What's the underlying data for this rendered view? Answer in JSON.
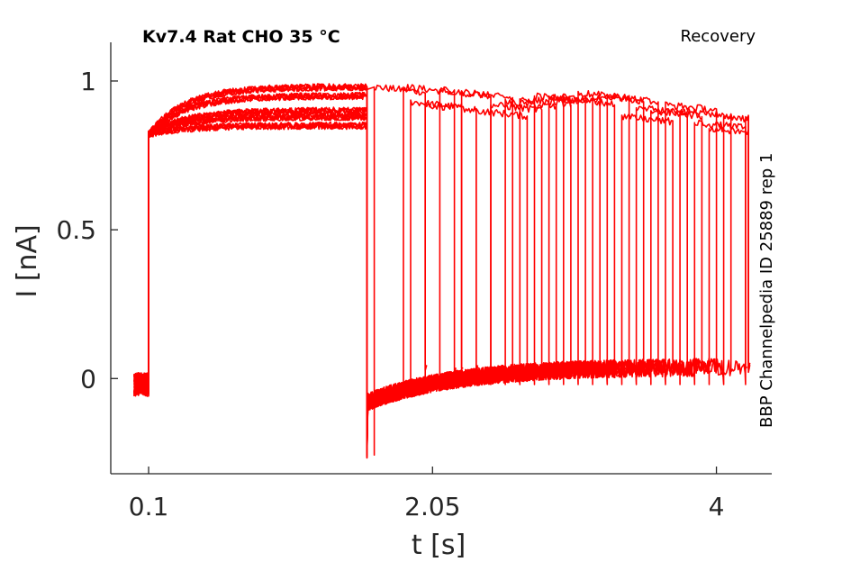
{
  "chart_data": {
    "type": "line",
    "title": "Kv7.4  Rat  CHO  35 °C",
    "protocol_label": "Recovery",
    "side_label": "BBP Channelpedia ID 25889 rep 1",
    "xlabel": "t [s]",
    "ylabel": "I [nA]",
    "xticks": [
      0.1,
      2.05,
      4
    ],
    "xtick_labels": [
      "0.1",
      "2.05",
      "4"
    ],
    "yticks": [
      0,
      0.5,
      1
    ],
    "ytick_labels": [
      "0",
      "0.5",
      "1"
    ],
    "xlim": [
      -0.16,
      4.38
    ],
    "ylim": [
      -0.32,
      1.13
    ],
    "grid": false,
    "legend": "none",
    "color": "#ff0000",
    "baseline": -0.02,
    "prepulse_window": [
      0.1,
      1.6
    ],
    "prepulse_levels": [
      0.98,
      0.9,
      0.95,
      0.88,
      0.85
    ],
    "series": [
      {
        "recovery_step_start": 1.65,
        "test_pulse_end": 1.65,
        "test_level": 0.98
      },
      {
        "recovery_step_start": 1.6,
        "test_pulse_end": 1.85,
        "test_level": 0.98
      },
      {
        "recovery_step_start": 1.6,
        "test_pulse_end": 1.9,
        "test_level": 0.93
      },
      {
        "recovery_step_start": 1.6,
        "test_pulse_end": 2.0,
        "test_level": 0.92
      },
      {
        "recovery_step_start": 1.6,
        "test_pulse_end": 2.1,
        "test_level": 0.97
      },
      {
        "recovery_step_start": 1.6,
        "test_pulse_end": 2.25,
        "test_level": 0.96
      },
      {
        "recovery_step_start": 1.6,
        "test_pulse_end": 2.35,
        "test_level": 0.9
      },
      {
        "recovery_step_start": 1.6,
        "test_pulse_end": 2.45,
        "test_level": 0.92
      },
      {
        "recovery_step_start": 1.6,
        "test_pulse_end": 2.55,
        "test_level": 0.93
      },
      {
        "recovery_step_start": 1.6,
        "test_pulse_end": 2.65,
        "test_level": 0.94
      },
      {
        "recovery_step_start": 1.6,
        "test_pulse_end": 2.75,
        "test_level": 0.95
      },
      {
        "recovery_step_start": 1.6,
        "test_pulse_end": 2.85,
        "test_level": 0.95
      },
      {
        "recovery_step_start": 1.6,
        "test_pulse_end": 2.95,
        "test_level": 0.94
      },
      {
        "recovery_step_start": 1.6,
        "test_pulse_end": 3.05,
        "test_level": 0.96
      },
      {
        "recovery_step_start": 1.6,
        "test_pulse_end": 3.15,
        "test_level": 0.95
      },
      {
        "recovery_step_start": 1.6,
        "test_pulse_end": 3.25,
        "test_level": 0.95
      },
      {
        "recovery_step_start": 1.6,
        "test_pulse_end": 3.35,
        "test_level": 0.88
      },
      {
        "recovery_step_start": 1.6,
        "test_pulse_end": 3.45,
        "test_level": 0.91
      },
      {
        "recovery_step_start": 1.6,
        "test_pulse_end": 3.55,
        "test_level": 0.9
      },
      {
        "recovery_step_start": 1.6,
        "test_pulse_end": 3.65,
        "test_level": 0.92
      },
      {
        "recovery_step_start": 1.6,
        "test_pulse_end": 3.75,
        "test_level": 0.9
      },
      {
        "recovery_step_start": 1.6,
        "test_pulse_end": 3.85,
        "test_level": 0.86
      },
      {
        "recovery_step_start": 1.6,
        "test_pulse_end": 3.95,
        "test_level": 0.84
      },
      {
        "recovery_step_start": 1.6,
        "test_pulse_end": 4.05,
        "test_level": 0.88
      },
      {
        "recovery_step_start": 1.6,
        "test_pulse_end": 4.2,
        "test_level": 0.88
      }
    ]
  }
}
